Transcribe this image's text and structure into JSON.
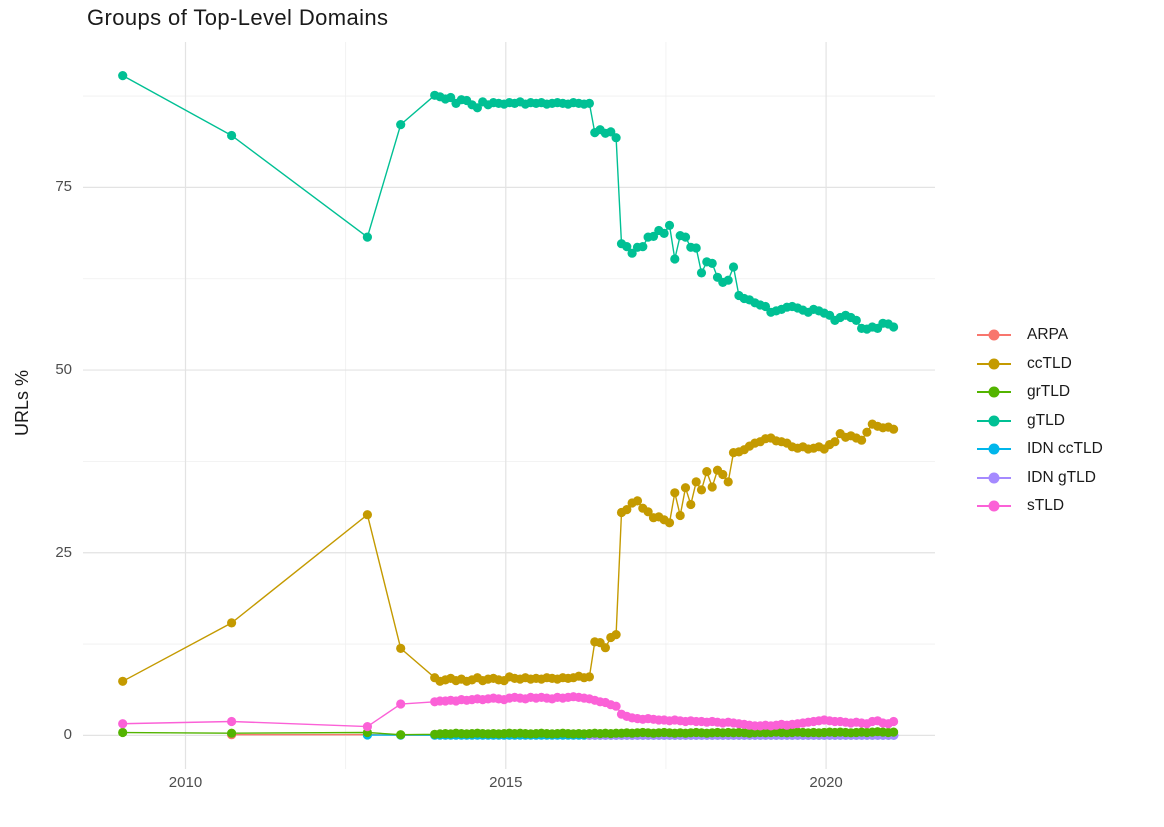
{
  "title": "Groups of Top-Level Domains",
  "axes": {
    "y_axis_title": "URLs %",
    "y_tick_labels": [
      "75",
      "50",
      "25",
      "0"
    ],
    "x_tick_labels": [
      "2010",
      "2015",
      "2020"
    ]
  },
  "style": {
    "background": "#ffffff",
    "grid_major_color": "#e3e3e3",
    "grid_minor_color": "#efefef",
    "axis_text_color": "#4d4d4d",
    "title_color": "#1a1a1a"
  },
  "chart_data": {
    "type": "line",
    "title": "Groups of Top-Level Domains",
    "xlabel": "",
    "ylabel": "URLs %",
    "xlim": [
      2008.4,
      2021.7
    ],
    "ylim": [
      -4.6,
      94.9
    ],
    "x_major": [
      2010,
      2015,
      2020
    ],
    "x_minor": [
      2012.5,
      2017.5
    ],
    "y_major": [
      75,
      50,
      25,
      0
    ],
    "y_minor": [
      87.5,
      62.5,
      37.5,
      12.5
    ],
    "grid": true,
    "legend_position": "right",
    "marker": "circle",
    "dense_step": 0.0833,
    "series": [
      {
        "name": "ARPA",
        "color": "#F8766D",
        "prefix": [
          [
            2010.72,
            0.1
          ],
          [
            2012.84,
            0.1
          ],
          [
            2013.36,
            0.06
          ]
        ],
        "dense_start": 2013.89,
        "dense_values": [
          0.05,
          0.05,
          0.05,
          0.05,
          0.05,
          0.05,
          0.05,
          0.05,
          0.05,
          0.05,
          0.05,
          0.05,
          0.05,
          0.05,
          0.05,
          0.05,
          0.05,
          0.05,
          0.05,
          0.05,
          0.05,
          0.05,
          0.05,
          0.05,
          0.05,
          0.05,
          0.05,
          0.05,
          0.05,
          0.05,
          0.05,
          0.05,
          0.05,
          0.05,
          0.05,
          0.05,
          0.05,
          0.05,
          0.05,
          0.05,
          0.05,
          0.05,
          0.05,
          0.05,
          0.05,
          0.05,
          0.05,
          0.05,
          0.05,
          0.05,
          0.05,
          0.05,
          0.05,
          0.05,
          0.05,
          0.05,
          0.05,
          0.05,
          0.05,
          0.05,
          0.05,
          0.05,
          0.05,
          0.05,
          0.05,
          0.05,
          0.05,
          0.05,
          0.05,
          0.05,
          0.05,
          0.05,
          0.05,
          0.05,
          0.05,
          0.05,
          0.05,
          0.05,
          0.05,
          0.05,
          0.05,
          0.05,
          0.05,
          0.05,
          0.05,
          0.05,
          0.05
        ]
      },
      {
        "name": "ccTLD",
        "color": "#C49A00",
        "prefix": [
          [
            2009.02,
            7.4
          ],
          [
            2010.72,
            15.4
          ],
          [
            2012.84,
            30.2
          ],
          [
            2013.36,
            11.9
          ]
        ],
        "dense_start": 2013.89,
        "dense_values": [
          7.9,
          7.4,
          7.6,
          7.8,
          7.5,
          7.7,
          7.4,
          7.6,
          7.9,
          7.5,
          7.7,
          7.8,
          7.6,
          7.5,
          8.0,
          7.8,
          7.7,
          7.9,
          7.7,
          7.8,
          7.7,
          7.9,
          7.8,
          7.7,
          7.9,
          7.8,
          7.9,
          8.1,
          7.9,
          8.0,
          12.8,
          12.7,
          12.0,
          13.4,
          13.8,
          30.5,
          30.9,
          31.8,
          32.1,
          31.1,
          30.6,
          29.8,
          29.9,
          29.5,
          29.1,
          33.2,
          30.1,
          33.9,
          31.6,
          34.7,
          33.6,
          36.1,
          34.0,
          36.3,
          35.7,
          34.7,
          38.7,
          38.8,
          39.1,
          39.6,
          40.0,
          40.2,
          40.6,
          40.7,
          40.3,
          40.2,
          40.0,
          39.5,
          39.3,
          39.5,
          39.2,
          39.3,
          39.5,
          39.2,
          39.8,
          40.2,
          41.3,
          40.8,
          41.0,
          40.7,
          40.4,
          41.5,
          42.6,
          42.3,
          42.1,
          42.2,
          41.9
        ]
      },
      {
        "name": "grTLD",
        "color": "#53B400",
        "prefix": [
          [
            2009.02,
            0.4
          ],
          [
            2010.72,
            0.3
          ],
          [
            2012.84,
            0.4
          ],
          [
            2013.36,
            0.1
          ]
        ],
        "dense_start": 2013.89,
        "dense_values": [
          0.15,
          0.2,
          0.25,
          0.2,
          0.3,
          0.25,
          0.2,
          0.25,
          0.3,
          0.25,
          0.2,
          0.25,
          0.2,
          0.25,
          0.3,
          0.25,
          0.3,
          0.25,
          0.2,
          0.25,
          0.3,
          0.25,
          0.2,
          0.25,
          0.3,
          0.25,
          0.2,
          0.25,
          0.2,
          0.25,
          0.3,
          0.25,
          0.3,
          0.25,
          0.3,
          0.3,
          0.35,
          0.3,
          0.35,
          0.4,
          0.35,
          0.3,
          0.35,
          0.4,
          0.35,
          0.3,
          0.35,
          0.3,
          0.35,
          0.4,
          0.35,
          0.3,
          0.35,
          0.4,
          0.35,
          0.4,
          0.35,
          0.4,
          0.35,
          0.3,
          0.35,
          0.4,
          0.35,
          0.4,
          0.45,
          0.4,
          0.35,
          0.4,
          0.45,
          0.4,
          0.35,
          0.4,
          0.35,
          0.4,
          0.45,
          0.4,
          0.45,
          0.4,
          0.35,
          0.4,
          0.45,
          0.4,
          0.45,
          0.5,
          0.45,
          0.4,
          0.45
        ]
      },
      {
        "name": "gTLD",
        "color": "#00C094",
        "prefix": [
          [
            2009.02,
            90.3
          ],
          [
            2010.72,
            82.1
          ],
          [
            2012.84,
            68.2
          ],
          [
            2013.36,
            83.6
          ]
        ],
        "dense_start": 2013.89,
        "dense_values": [
          87.6,
          87.4,
          87.1,
          87.3,
          86.5,
          87.0,
          86.9,
          86.3,
          85.9,
          86.7,
          86.3,
          86.6,
          86.5,
          86.4,
          86.6,
          86.5,
          86.7,
          86.4,
          86.6,
          86.5,
          86.6,
          86.4,
          86.5,
          86.6,
          86.5,
          86.4,
          86.6,
          86.5,
          86.4,
          86.5,
          82.5,
          82.9,
          82.4,
          82.6,
          81.8,
          67.3,
          66.9,
          66.0,
          66.8,
          66.9,
          68.2,
          68.3,
          69.1,
          68.7,
          69.8,
          65.2,
          68.4,
          68.2,
          66.8,
          66.7,
          63.3,
          64.8,
          64.6,
          62.7,
          62.0,
          62.3,
          64.1,
          60.2,
          59.8,
          59.6,
          59.2,
          58.9,
          58.7,
          57.9,
          58.1,
          58.3,
          58.6,
          58.7,
          58.5,
          58.2,
          57.9,
          58.3,
          58.1,
          57.8,
          57.5,
          56.8,
          57.2,
          57.5,
          57.2,
          56.8,
          55.7,
          55.6,
          55.9,
          55.7,
          56.4,
          56.3,
          55.9
        ]
      },
      {
        "name": "IDN ccTLD",
        "color": "#00B6EB",
        "prefix": [
          [
            2012.84,
            0.06
          ],
          [
            2013.36,
            0.04
          ]
        ],
        "dense_start": 2013.89,
        "dense_values": [
          0.03,
          0.03,
          0.03,
          0.03,
          0.03,
          0.03,
          0.03,
          0.03,
          0.03,
          0.03,
          0.03,
          0.03,
          0.03,
          0.03,
          0.03,
          0.03,
          0.03,
          0.03,
          0.03,
          0.03,
          0.03,
          0.03,
          0.03,
          0.03,
          0.03,
          0.03,
          0.03,
          0.03,
          0.03,
          0.03,
          0.03,
          0.03,
          0.03,
          0.03,
          0.03,
          0.03,
          0.03,
          0.03,
          0.03,
          0.03,
          0.03,
          0.03,
          0.03,
          0.03,
          0.03,
          0.03,
          0.03,
          0.03,
          0.03,
          0.03,
          0.03,
          0.03,
          0.03,
          0.03,
          0.03,
          0.03,
          0.03,
          0.03,
          0.03,
          0.03,
          0.03,
          0.03,
          0.03,
          0.03,
          0.03,
          0.03,
          0.03,
          0.03,
          0.03,
          0.03,
          0.03,
          0.03,
          0.03,
          0.03,
          0.03,
          0.03,
          0.03,
          0.03,
          0.03,
          0.03,
          0.03,
          0.03,
          0.03,
          0.03,
          0.03,
          0.03,
          0.03
        ]
      },
      {
        "name": "IDN gTLD",
        "color": "#A58AFF",
        "prefix": [],
        "dense_start": 2016.31,
        "dense_values": [
          0.01,
          0.01,
          0.01,
          0.01,
          0.01,
          0.01,
          0.01,
          0.01,
          0.01,
          0.01,
          0.01,
          0.01,
          0.01,
          0.01,
          0.01,
          0.01,
          0.01,
          0.01,
          0.01,
          0.01,
          0.01,
          0.01,
          0.01,
          0.01,
          0.01,
          0.01,
          0.01,
          0.01,
          0.01,
          0.01,
          0.01,
          0.01,
          0.01,
          0.01,
          0.01,
          0.01,
          0.01,
          0.01,
          0.01,
          0.01,
          0.01,
          0.01,
          0.01,
          0.01,
          0.01,
          0.01,
          0.01,
          0.01,
          0.01,
          0.01,
          0.01,
          0.01,
          0.01,
          0.01,
          0.01,
          0.01,
          0.01,
          0.01
        ]
      },
      {
        "name": "sTLD",
        "color": "#FB61D7",
        "prefix": [
          [
            2009.02,
            1.6
          ],
          [
            2010.72,
            1.9
          ],
          [
            2012.84,
            1.2
          ],
          [
            2013.36,
            4.3
          ]
        ],
        "dense_start": 2013.89,
        "dense_values": [
          4.6,
          4.7,
          4.7,
          4.8,
          4.7,
          4.9,
          4.8,
          4.9,
          5.0,
          4.9,
          5.0,
          5.1,
          5.0,
          4.9,
          5.1,
          5.2,
          5.1,
          5.0,
          5.2,
          5.1,
          5.2,
          5.1,
          5.0,
          5.2,
          5.1,
          5.2,
          5.3,
          5.2,
          5.1,
          5.0,
          4.8,
          4.6,
          4.5,
          4.2,
          4.0,
          2.9,
          2.6,
          2.4,
          2.3,
          2.2,
          2.3,
          2.2,
          2.1,
          2.1,
          2.0,
          2.1,
          2.0,
          1.9,
          2.0,
          1.9,
          1.9,
          1.8,
          1.9,
          1.8,
          1.7,
          1.8,
          1.7,
          1.6,
          1.5,
          1.4,
          1.3,
          1.3,
          1.4,
          1.3,
          1.4,
          1.5,
          1.4,
          1.5,
          1.6,
          1.7,
          1.8,
          1.9,
          2.0,
          2.1,
          2.0,
          1.9,
          1.9,
          1.8,
          1.7,
          1.8,
          1.7,
          1.6,
          1.9,
          2.0,
          1.7,
          1.6,
          1.9
        ]
      }
    ]
  }
}
